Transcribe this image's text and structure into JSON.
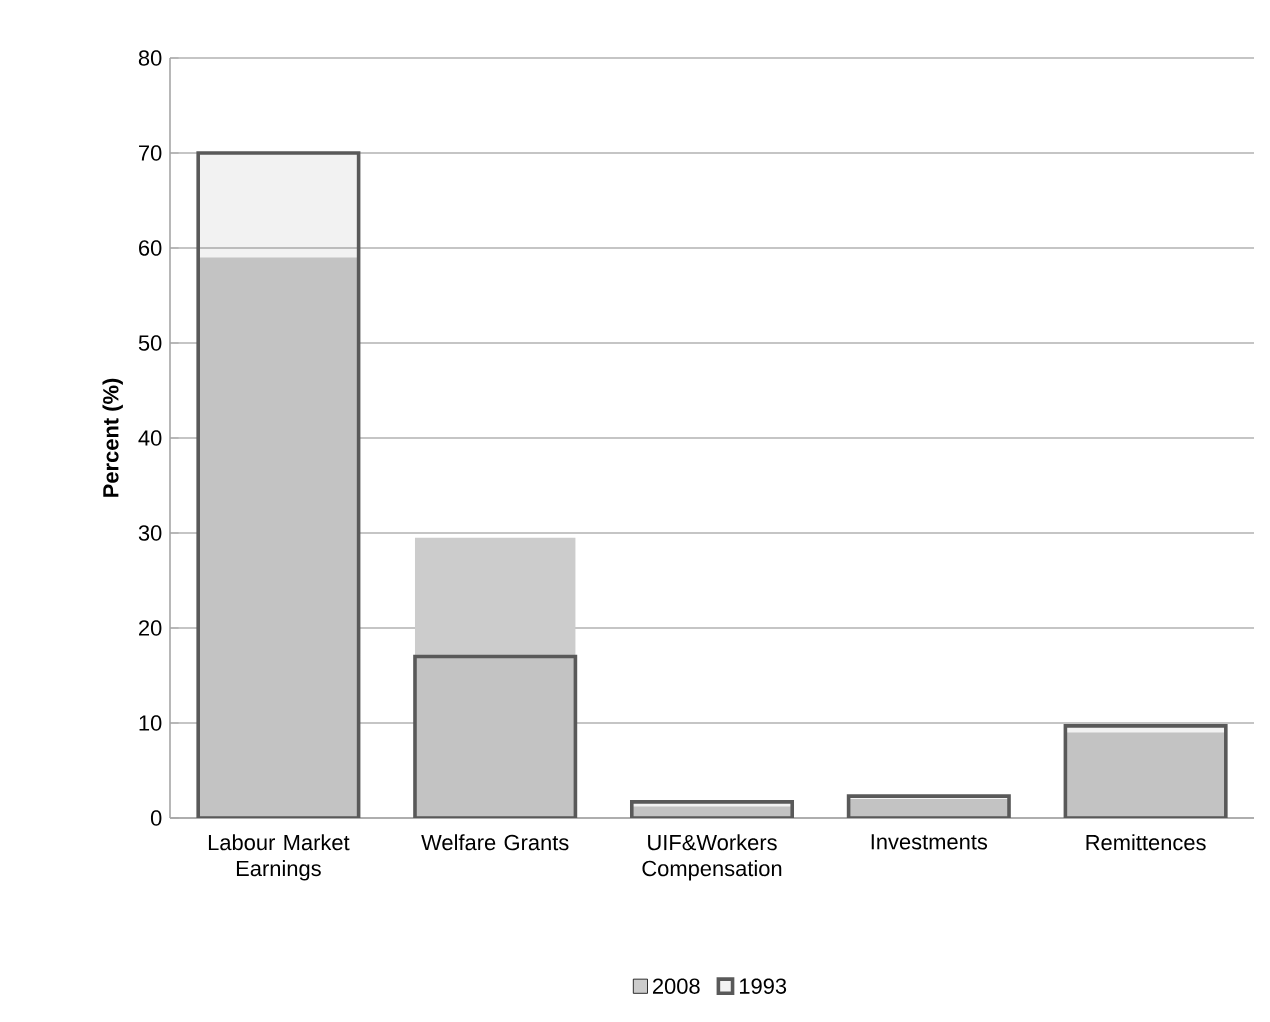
{
  "chart_data": {
    "type": "bar",
    "ylabel": "Percent (%)",
    "categories": [
      "Labour Market Earnings",
      "Welfare Grants",
      "UIF&Workers Compensation",
      "Investments",
      "Remittences"
    ],
    "series": [
      {
        "name": "2008",
        "color": "#cccccc",
        "values": [
          59,
          29.5,
          1.2,
          2,
          9
        ]
      },
      {
        "name": "1993",
        "color": "#595959",
        "values": [
          70,
          17,
          1.7,
          2.3,
          9.7
        ]
      }
    ],
    "ylim": [
      0,
      80
    ],
    "yticks": [
      0,
      10,
      20,
      30,
      40,
      50,
      60,
      70,
      80
    ],
    "grid": "y",
    "legend": "bottom"
  }
}
